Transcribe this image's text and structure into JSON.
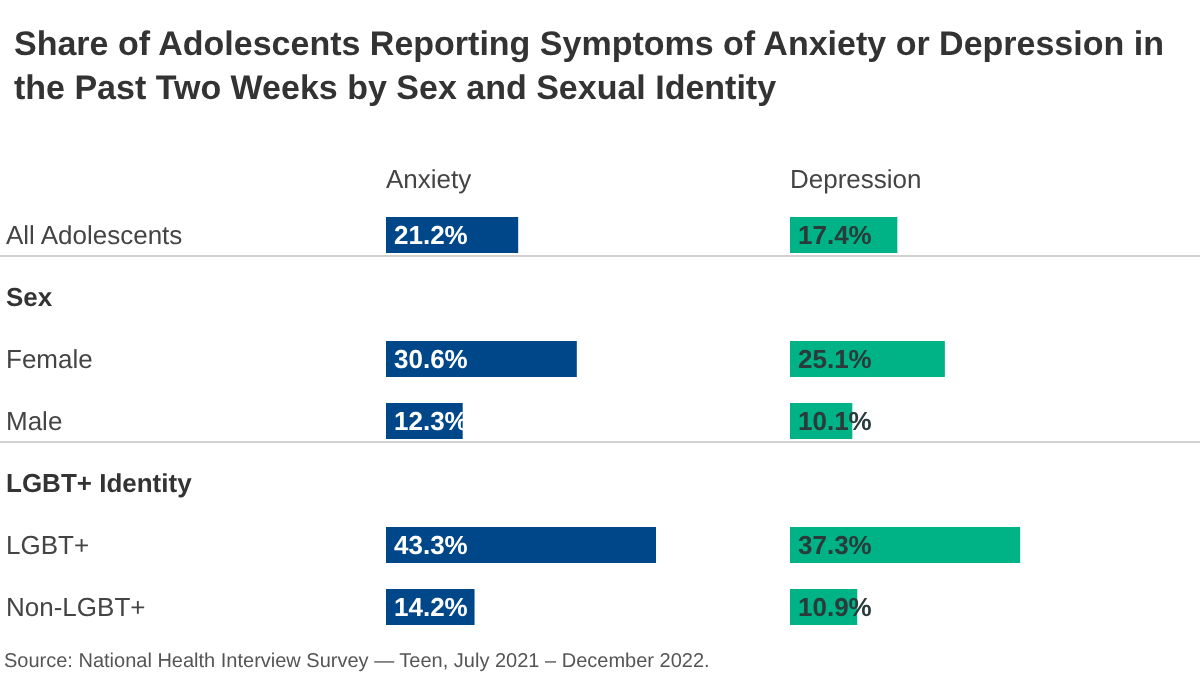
{
  "chart_data": [
    {
      "type": "bar",
      "orientation": "horizontal",
      "title": "Share of Adolescents Reporting Symptoms of Anxiety or Depression in the Past Two Weeks by Sex and Sexual Identity",
      "categories": [
        "All Adolescents",
        "Sex",
        "Female",
        "Male",
        "LGBT+ Identity",
        "LGBT+",
        "Non-LGBT+"
      ],
      "series": [
        {
          "name": "Anxiety",
          "color": "#00478a",
          "values": [
            21.2,
            null,
            30.6,
            12.3,
            null,
            43.3,
            14.2
          ],
          "value_labels": [
            "21.2%",
            null,
            "30.6%",
            "12.3%",
            null,
            "43.3%",
            "14.2%"
          ]
        }
      ],
      "tick_labels": "y",
      "annotations": [
        "Source: National Health Interview Survey — Teen, July 2021 – December 2022."
      ]
    },
    {
      "type": "bar",
      "orientation": "horizontal",
      "categories": [
        null,
        null,
        null,
        null,
        null,
        null,
        null
      ],
      "series": [
        {
          "name": "Depression",
          "color": "#00b386",
          "values": [
            17.4,
            null,
            25.1,
            10.1,
            null,
            37.3,
            10.9
          ],
          "value_labels": [
            "17.4%",
            null,
            "25.1%",
            "10.1%",
            null,
            "37.3%",
            "10.9%"
          ]
        }
      ],
      "tick_labels": false
    }
  ]
}
